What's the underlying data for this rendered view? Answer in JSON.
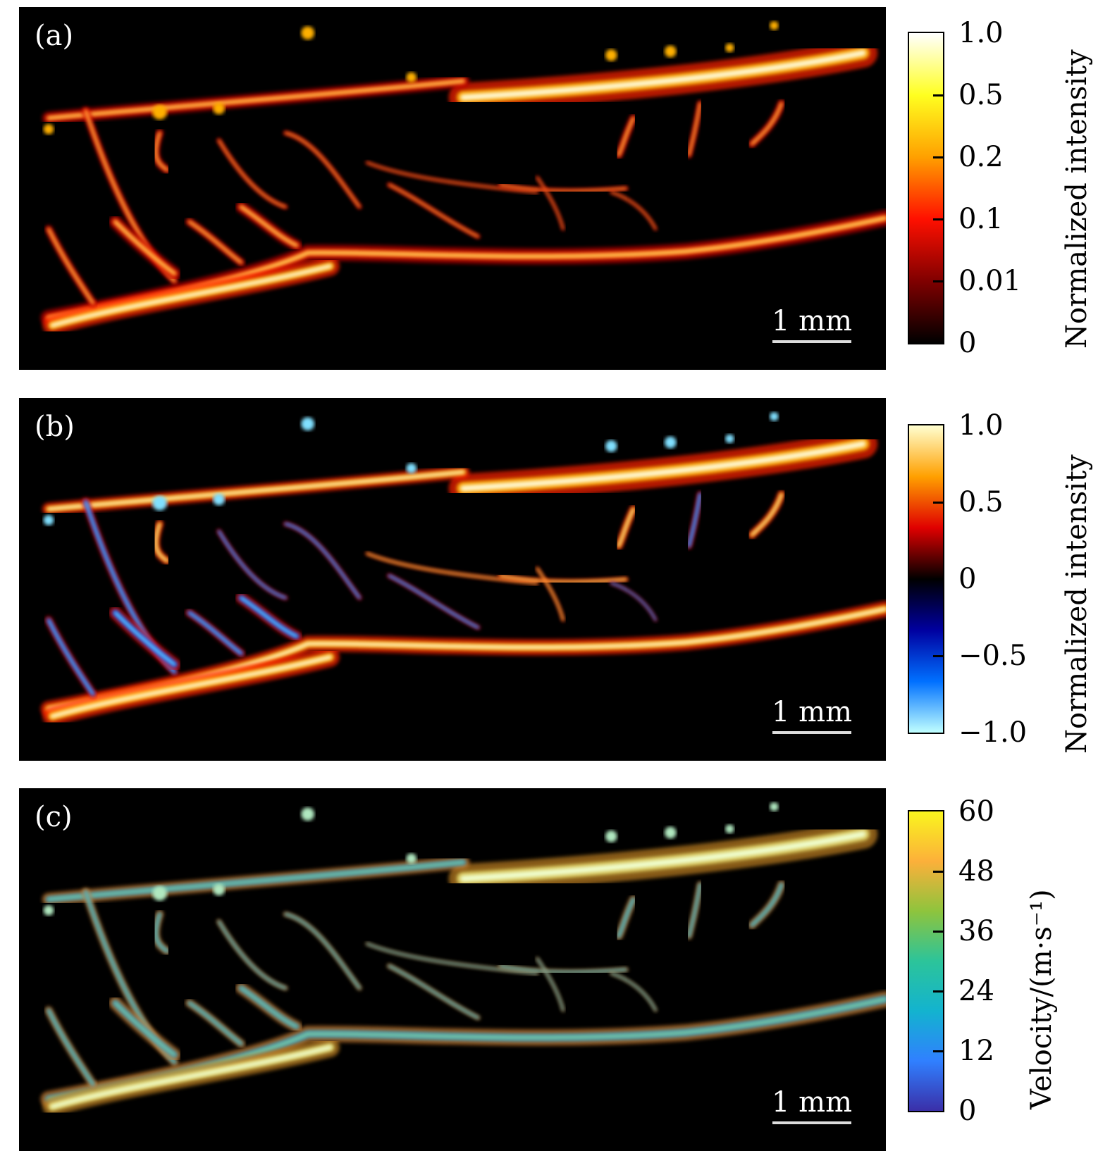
{
  "panels": [
    {
      "label": "(a)",
      "scale_bar": "1 mm",
      "colorbar": {
        "title": "Normalized intensity",
        "ticks": [
          "1.0",
          "0.5",
          "0.2",
          "0.1",
          "0.01",
          "0"
        ],
        "colors": [
          "#ffffff",
          "#ffff20",
          "#ffa000",
          "#ff1000",
          "#800000",
          "#000000"
        ]
      }
    },
    {
      "label": "(b)",
      "scale_bar": "1 mm",
      "colorbar": {
        "title": "Normalized intensity",
        "ticks": [
          "1.0",
          "0.5",
          "0",
          "−0.5",
          "−1.0"
        ],
        "colors": [
          "#ffffd0",
          "#ffa000",
          "#e00000",
          "#000000",
          "#0000a0",
          "#0070ff",
          "#c0ffff"
        ]
      }
    },
    {
      "label": "(c)",
      "scale_bar": "1 mm",
      "colorbar": {
        "title": "Velocity/(m·s⁻¹)",
        "ticks": [
          "60",
          "48",
          "36",
          "24",
          "12",
          "0"
        ],
        "colors": [
          "#f9f51e",
          "#fcb03a",
          "#8ec43d",
          "#2cc49a",
          "#13b3cf",
          "#3080ff",
          "#3a2fa8"
        ]
      }
    }
  ]
}
